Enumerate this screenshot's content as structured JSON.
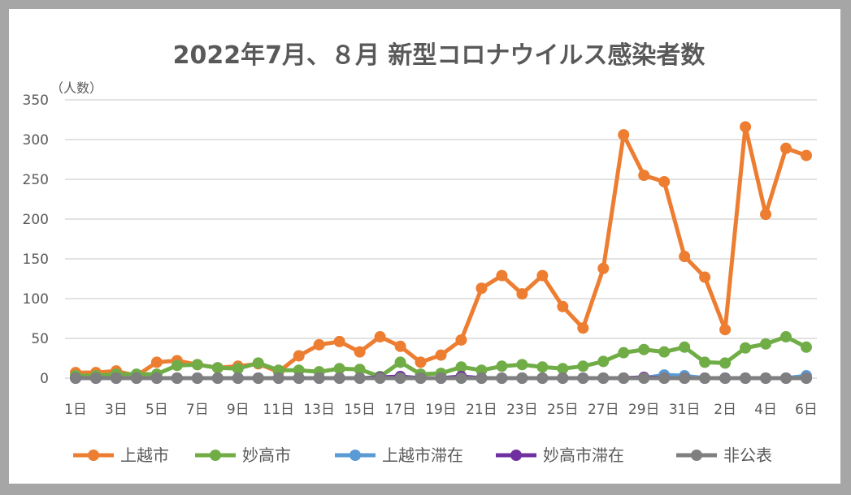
{
  "chart_data": {
    "type": "line",
    "title": "2022年7月、８月 新型コロナウイルス感染者数",
    "ylabel": "（人数）",
    "xlabel": "",
    "ylim": [
      0,
      350
    ],
    "yticks": [
      "0",
      "50",
      "100",
      "150",
      "200",
      "250",
      "300",
      "350"
    ],
    "grid": true,
    "legend_position": "bottom",
    "x": [
      "1日",
      "2日",
      "3日",
      "4日",
      "5日",
      "6日",
      "7日",
      "8日",
      "9日",
      "10日",
      "11日",
      "12日",
      "13日",
      "14日",
      "15日",
      "16日",
      "17日",
      "18日",
      "19日",
      "20日",
      "21日",
      "22日",
      "23日",
      "24日",
      "25日",
      "26日",
      "27日",
      "28日",
      "29日",
      "30日",
      "31日",
      "1日",
      "2日",
      "3日",
      "4日",
      "5日",
      "6日"
    ],
    "xtick_labels": [
      "1日",
      "3日",
      "5日",
      "7日",
      "9日",
      "11日",
      "13日",
      "15日",
      "17日",
      "19日",
      "21日",
      "23日",
      "25日",
      "27日",
      "29日",
      "31日",
      "2日",
      "4日",
      "6日"
    ],
    "series": [
      {
        "name": "上越市",
        "color": "#ed7d31",
        "values": [
          7,
          7,
          9,
          3,
          20,
          22,
          17,
          13,
          15,
          18,
          8,
          28,
          42,
          46,
          33,
          52,
          40,
          20,
          29,
          48,
          113,
          129,
          106,
          129,
          90,
          63,
          138,
          306,
          255,
          247,
          153,
          127,
          61,
          316,
          206,
          289,
          280
        ]
      },
      {
        "name": "妙高市",
        "color": "#70ad47",
        "values": [
          3,
          3,
          5,
          5,
          5,
          16,
          17,
          13,
          12,
          19,
          10,
          10,
          8,
          12,
          11,
          2,
          20,
          5,
          6,
          14,
          10,
          15,
          17,
          14,
          12,
          15,
          21,
          32,
          36,
          33,
          39,
          20,
          19,
          38,
          43,
          52,
          39
        ]
      },
      {
        "name": "上越市滞在",
        "color": "#5b9bd5",
        "values": [
          0,
          0,
          0,
          0,
          0,
          0,
          0,
          0,
          0,
          0,
          0,
          0,
          0,
          0,
          0,
          0,
          0,
          0,
          0,
          0,
          0,
          0,
          0,
          0,
          0,
          0,
          0,
          0,
          0,
          4,
          3,
          0,
          0,
          0,
          0,
          0,
          3
        ]
      },
      {
        "name": "妙高市滞在",
        "color": "#7030a0",
        "values": [
          0,
          0,
          0,
          0,
          0,
          0,
          0,
          0,
          0,
          0,
          0,
          0,
          0,
          0,
          0,
          1,
          2,
          0,
          0,
          2,
          0,
          0,
          0,
          0,
          0,
          0,
          0,
          0,
          1,
          0,
          0,
          0,
          0,
          0,
          0,
          0,
          0
        ]
      },
      {
        "name": "非公表",
        "color": "#7f7f7f",
        "values": [
          0,
          0,
          0,
          0,
          0,
          0,
          0,
          0,
          0,
          0,
          0,
          0,
          0,
          0,
          0,
          0,
          0,
          0,
          0,
          0,
          0,
          0,
          0,
          0,
          0,
          0,
          0,
          0,
          0,
          0,
          0,
          0,
          0,
          0,
          0,
          0,
          0
        ]
      }
    ]
  }
}
